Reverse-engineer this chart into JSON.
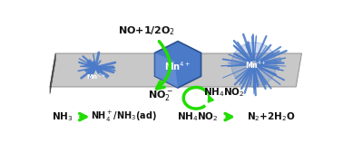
{
  "fig_width": 3.78,
  "fig_height": 1.58,
  "dpi": 100,
  "bg_color": "#ffffff",
  "platform_color": "#c8c8c8",
  "blue_color": "#4a7ac8",
  "blue_dark": "#2a5090",
  "blue_light": "#7aa0e0",
  "green_color": "#22dd00",
  "text_color": "#111111"
}
